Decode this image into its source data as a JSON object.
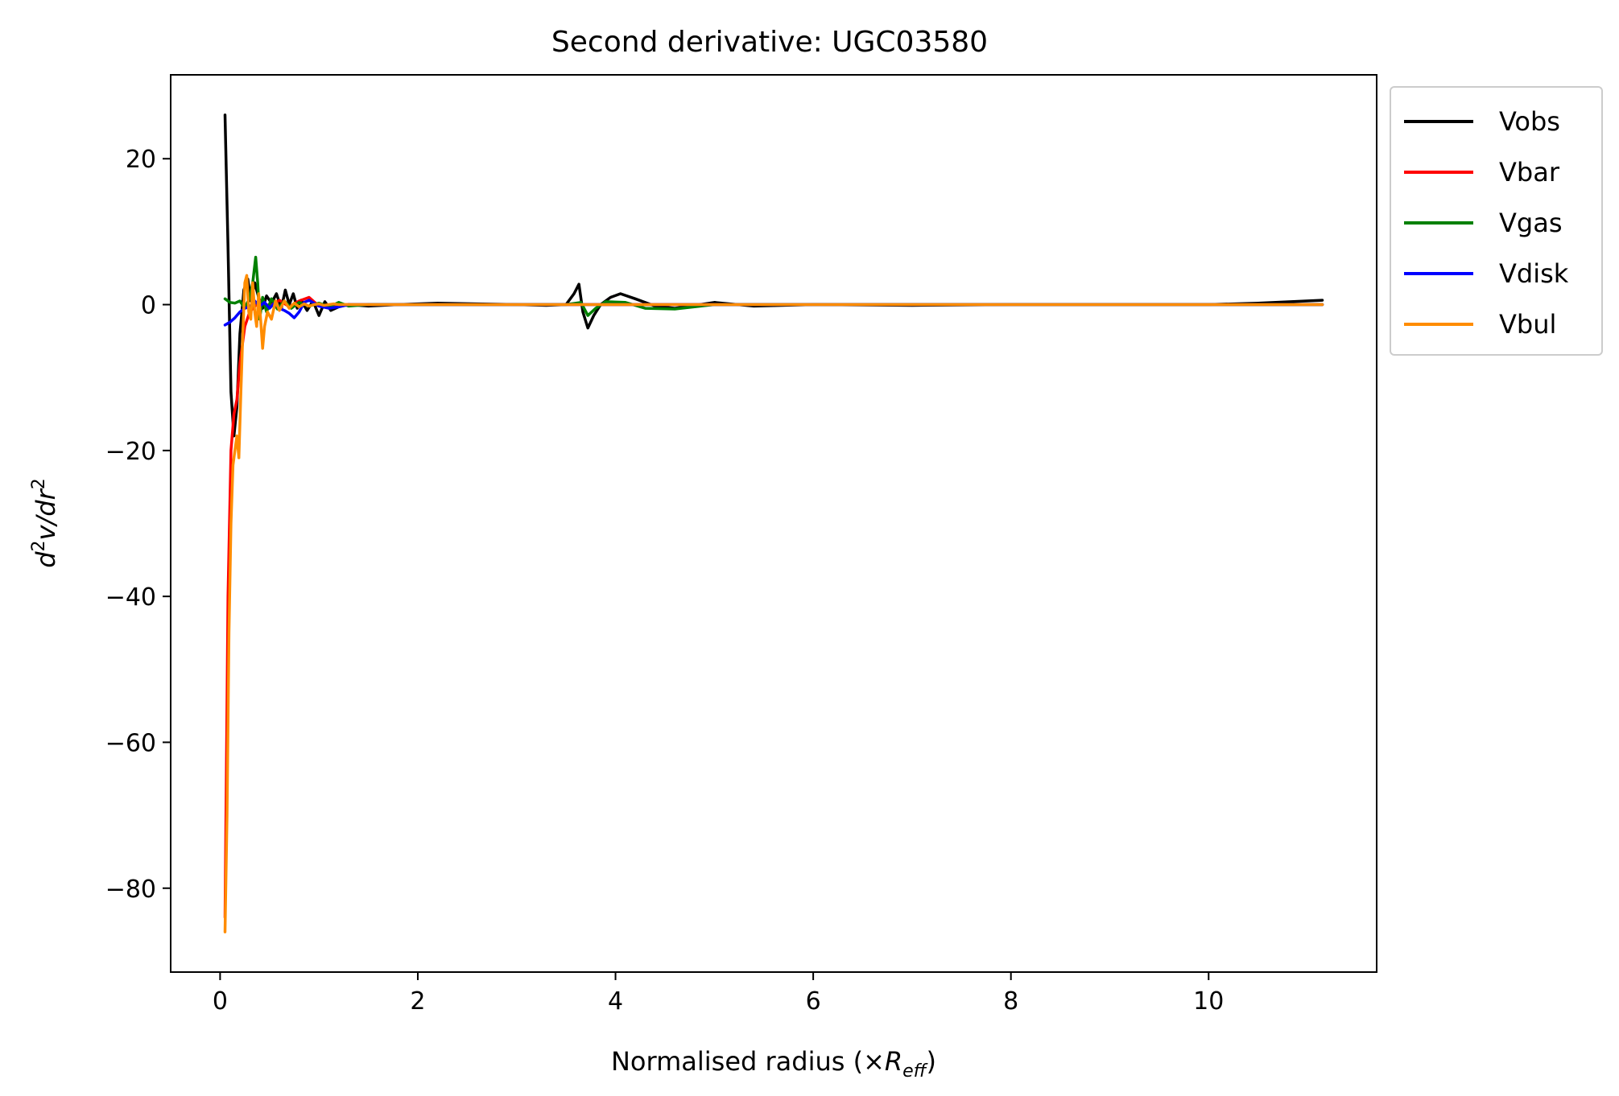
{
  "chart_data": {
    "type": "line",
    "title": "Second derivative: UGC03580",
    "xlabel": {
      "main": "Normalised radius (×",
      "italic": "R",
      "sub": "eff",
      "close": ")"
    },
    "ylabel": {
      "d": "d",
      "exp1": "2",
      "mid": "v/dr",
      "exp2": "2"
    },
    "xlim": [
      -0.5,
      11.7
    ],
    "ylim": [
      -91.5,
      31.5
    ],
    "xticks": [
      0,
      2,
      4,
      6,
      8,
      10
    ],
    "xtick_labels": [
      "0",
      "2",
      "4",
      "6",
      "8",
      "10"
    ],
    "yticks": [
      20,
      0,
      -20,
      -40,
      -60,
      -80
    ],
    "ytick_labels": [
      "20",
      "0",
      "−20",
      "−40",
      "−60",
      "−80"
    ],
    "grid": false,
    "legend": "upper-right-outside",
    "series": [
      {
        "name": "Vobs",
        "color": "#000000",
        "x": [
          0.05,
          0.08,
          0.11,
          0.14,
          0.17,
          0.2,
          0.24,
          0.28,
          0.31,
          0.35,
          0.39,
          0.43,
          0.47,
          0.52,
          0.57,
          0.62,
          0.66,
          0.7,
          0.74,
          0.78,
          0.82,
          0.88,
          0.94,
          1.0,
          1.06,
          1.12,
          1.2,
          1.3,
          1.5,
          1.8,
          2.2,
          2.6,
          3.0,
          3.3,
          3.5,
          3.58,
          3.63,
          3.67,
          3.72,
          3.78,
          3.85,
          3.95,
          4.05,
          4.2,
          4.4,
          4.6,
          5.0,
          5.4,
          6.0,
          7.0,
          8.0,
          9.0,
          10.0,
          10.5,
          11.15
        ],
        "y": [
          26,
          8,
          -12,
          -18,
          -14,
          -4,
          2,
          3.5,
          0.5,
          3,
          1,
          -0.5,
          1.2,
          0.2,
          1.5,
          -0.5,
          2,
          0,
          1.5,
          -0.5,
          0.6,
          -0.8,
          0.5,
          -1.5,
          0.4,
          -0.8,
          -0.3,
          0,
          -0.2,
          0,
          0.2,
          0.1,
          0,
          -0.1,
          0,
          1.5,
          2.8,
          -1,
          -3.2,
          -1.5,
          0,
          1,
          1.5,
          0.8,
          -0.2,
          -0.5,
          0.3,
          -0.2,
          0,
          -0.1,
          0,
          0,
          0,
          0.2,
          0.6
        ]
      },
      {
        "name": "Vbar",
        "color": "#ff0000",
        "x": [
          0.05,
          0.08,
          0.11,
          0.14,
          0.17,
          0.2,
          0.25,
          0.3,
          0.4,
          0.5,
          0.6,
          0.7,
          0.8,
          0.9,
          1.0,
          1.2,
          1.5,
          2.0,
          3.0,
          5.0,
          8.0,
          11.15
        ],
        "y": [
          -84,
          -40,
          -20,
          -15,
          -13,
          -8,
          -3,
          -1,
          0.5,
          -0.2,
          0.6,
          -0.3,
          0.5,
          1,
          -0.2,
          0,
          0,
          0,
          0,
          0,
          0,
          0
        ]
      },
      {
        "name": "Vgas",
        "color": "#008000",
        "x": [
          0.05,
          0.1,
          0.15,
          0.2,
          0.25,
          0.3,
          0.33,
          0.36,
          0.38,
          0.4,
          0.43,
          0.47,
          0.52,
          0.58,
          0.65,
          0.72,
          0.8,
          0.9,
          1.0,
          1.1,
          1.2,
          1.3,
          1.5,
          2.0,
          3.0,
          3.5,
          3.65,
          3.72,
          3.8,
          3.9,
          4.1,
          4.3,
          4.6,
          5.0,
          6.0,
          8.0,
          10.0,
          11.15
        ],
        "y": [
          0.8,
          0.3,
          0.2,
          0.5,
          -0.5,
          1,
          3,
          6.5,
          3,
          -2,
          1,
          -1,
          0.8,
          -0.6,
          0.5,
          -0.5,
          0.3,
          -0.2,
          0.2,
          -0.3,
          0.3,
          -0.2,
          0,
          0,
          0,
          0,
          0.3,
          -1.5,
          -0.5,
          0.4,
          0.3,
          -0.5,
          -0.6,
          0,
          0,
          0,
          0,
          0
        ]
      },
      {
        "name": "Vdisk",
        "color": "#0000ff",
        "x": [
          0.05,
          0.1,
          0.15,
          0.2,
          0.25,
          0.3,
          0.35,
          0.4,
          0.45,
          0.5,
          0.55,
          0.6,
          0.65,
          0.7,
          0.75,
          0.8,
          0.85,
          0.9,
          1.0,
          1.1,
          1.2,
          1.3,
          1.5,
          2.0,
          3.0,
          5.0,
          8.0,
          11.15
        ],
        "y": [
          -2.8,
          -2.4,
          -1.8,
          -1.0,
          -0.5,
          -0.3,
          0.5,
          -0.2,
          0.3,
          -0.5,
          0.2,
          -0.5,
          -0.8,
          -1.2,
          -1.8,
          -1.0,
          0.3,
          0.6,
          -0.2,
          -0.5,
          -0.3,
          0,
          0,
          0,
          0,
          0,
          0,
          0
        ]
      },
      {
        "name": "Vbul",
        "color": "#ff8c00",
        "x": [
          0.05,
          0.07,
          0.09,
          0.11,
          0.13,
          0.15,
          0.17,
          0.19,
          0.21,
          0.23,
          0.25,
          0.27,
          0.29,
          0.31,
          0.33,
          0.35,
          0.37,
          0.39,
          0.41,
          0.43,
          0.45,
          0.48,
          0.52,
          0.56,
          0.6,
          0.65,
          0.7,
          0.75,
          0.8,
          0.85,
          0.9,
          0.95,
          1.0,
          1.05,
          1.1,
          1.15,
          1.2,
          1.3,
          1.5,
          2.0,
          3.0,
          5.0,
          8.0,
          11.15
        ],
        "y": [
          -86,
          -70,
          -45,
          -30,
          -22,
          -20,
          -18,
          -21,
          -12,
          -4,
          3,
          4,
          -1,
          -2,
          3,
          -1,
          -3,
          1.5,
          -2,
          -6,
          -3,
          -1,
          -2,
          0.5,
          -0.8,
          0.5,
          -0.5,
          0.2,
          -0.3,
          0.1,
          -0.2,
          0,
          0.1,
          -0.1,
          0,
          0.1,
          0,
          0,
          0,
          0,
          0,
          0,
          0,
          0
        ]
      }
    ]
  }
}
